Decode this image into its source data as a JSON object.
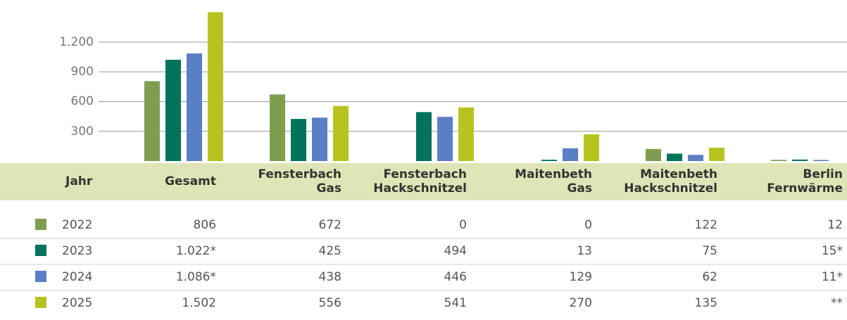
{
  "chart_data": {
    "type": "bar",
    "row_header": "Jahr",
    "categories": [
      "Gesamt",
      "Fensterbach\nGas",
      "Fensterbach\nHackschnitzel",
      "Maitenbeth\nGas",
      "Maitenbeth\nHackschnitzel",
      "Berlin\nFernwärme"
    ],
    "series": [
      {
        "name": "2022",
        "color": "#7f9d4f",
        "values": [
          806,
          672,
          0,
          0,
          122,
          12
        ]
      },
      {
        "name": "2023",
        "color": "#00735a",
        "values": [
          1022,
          425,
          494,
          13,
          75,
          15
        ],
        "value_labels": [
          "1.022*",
          "425",
          "494",
          "13",
          "75",
          "15*"
        ]
      },
      {
        "name": "2024",
        "color": "#5b7fc4",
        "values": [
          1086,
          438,
          446,
          129,
          62,
          11
        ],
        "value_labels": [
          "1.086*",
          "438",
          "446",
          "129",
          "62",
          "11*"
        ]
      },
      {
        "name": "2025",
        "color": "#b7c320",
        "values": [
          1502,
          556,
          541,
          270,
          135,
          null
        ],
        "value_labels": [
          "1.502",
          "556",
          "541",
          "270",
          "135",
          "**"
        ]
      }
    ],
    "ylim": [
      0,
      1625
    ],
    "yticks": [
      300,
      600,
      900,
      {
        "value": 1200,
        "label": "1.200"
      }
    ],
    "grid": true
  }
}
